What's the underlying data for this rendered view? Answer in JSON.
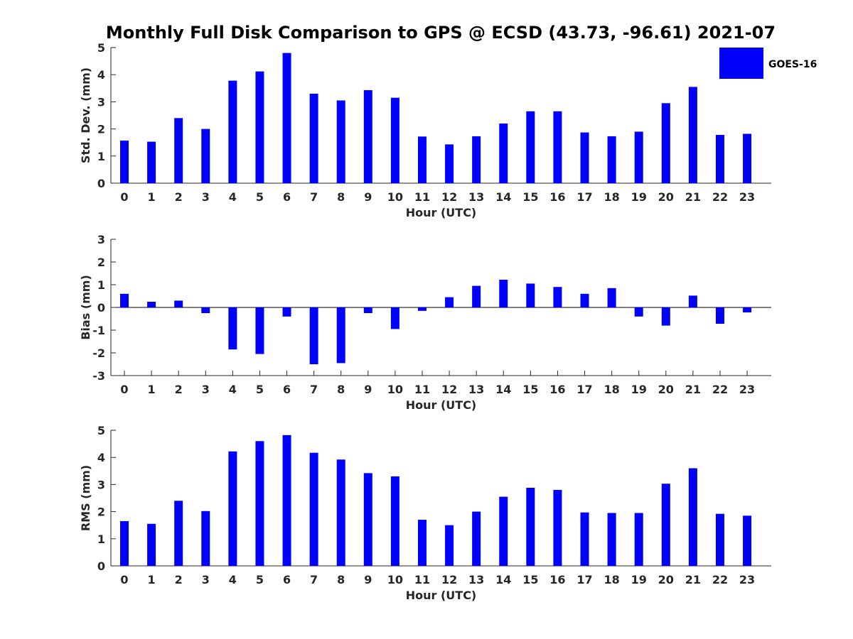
{
  "title": "Monthly Full Disk Comparison to GPS @ ECSD (43.73, -96.61) 2021-07",
  "legend": {
    "label": "GOES-16",
    "color": "#0000ff",
    "placement": "top-right"
  },
  "chart_data": [
    {
      "type": "bar",
      "xlabel": "Hour (UTC)",
      "ylabel": "Std. Dev. (mm)",
      "ylim": [
        0,
        5
      ],
      "yticks": [
        0,
        1,
        2,
        3,
        4,
        5
      ],
      "categories": [
        "0",
        "1",
        "2",
        "3",
        "4",
        "5",
        "6",
        "7",
        "8",
        "9",
        "10",
        "11",
        "12",
        "13",
        "14",
        "15",
        "16",
        "17",
        "18",
        "19",
        "20",
        "21",
        "22",
        "23"
      ],
      "series": [
        {
          "name": "GOES-16",
          "values": [
            1.57,
            1.53,
            2.4,
            2.0,
            3.78,
            4.12,
            4.8,
            3.3,
            3.05,
            3.43,
            3.15,
            1.72,
            1.43,
            1.73,
            2.2,
            2.65,
            2.65,
            1.87,
            1.73,
            1.9,
            2.95,
            3.55,
            1.78,
            1.82
          ]
        }
      ]
    },
    {
      "type": "bar",
      "xlabel": "Hour (UTC)",
      "ylabel": "Bias (mm)",
      "ylim": [
        -3,
        3
      ],
      "yticks": [
        -3,
        -2,
        -1,
        0,
        1,
        2,
        3
      ],
      "categories": [
        "0",
        "1",
        "2",
        "3",
        "4",
        "5",
        "6",
        "7",
        "8",
        "9",
        "10",
        "11",
        "12",
        "13",
        "14",
        "15",
        "16",
        "17",
        "18",
        "19",
        "20",
        "21",
        "22",
        "23"
      ],
      "series": [
        {
          "name": "GOES-16",
          "values": [
            0.6,
            0.25,
            0.3,
            -0.25,
            -1.85,
            -2.05,
            -0.4,
            -2.5,
            -2.45,
            -0.25,
            -0.95,
            -0.15,
            0.45,
            0.95,
            1.22,
            1.05,
            0.9,
            0.6,
            0.85,
            -0.4,
            -0.8,
            0.52,
            -0.72,
            -0.22
          ]
        }
      ]
    },
    {
      "type": "bar",
      "xlabel": "Hour (UTC)",
      "ylabel": "RMS (mm)",
      "ylim": [
        0,
        5
      ],
      "yticks": [
        0,
        1,
        2,
        3,
        4,
        5
      ],
      "categories": [
        "0",
        "1",
        "2",
        "3",
        "4",
        "5",
        "6",
        "7",
        "8",
        "9",
        "10",
        "11",
        "12",
        "13",
        "14",
        "15",
        "16",
        "17",
        "18",
        "19",
        "20",
        "21",
        "22",
        "23"
      ],
      "series": [
        {
          "name": "GOES-16",
          "values": [
            1.65,
            1.55,
            2.4,
            2.02,
            4.22,
            4.6,
            4.82,
            4.17,
            3.92,
            3.42,
            3.3,
            1.7,
            1.5,
            2.0,
            2.55,
            2.88,
            2.8,
            1.97,
            1.95,
            1.95,
            3.03,
            3.6,
            1.92,
            1.85
          ]
        }
      ]
    }
  ]
}
